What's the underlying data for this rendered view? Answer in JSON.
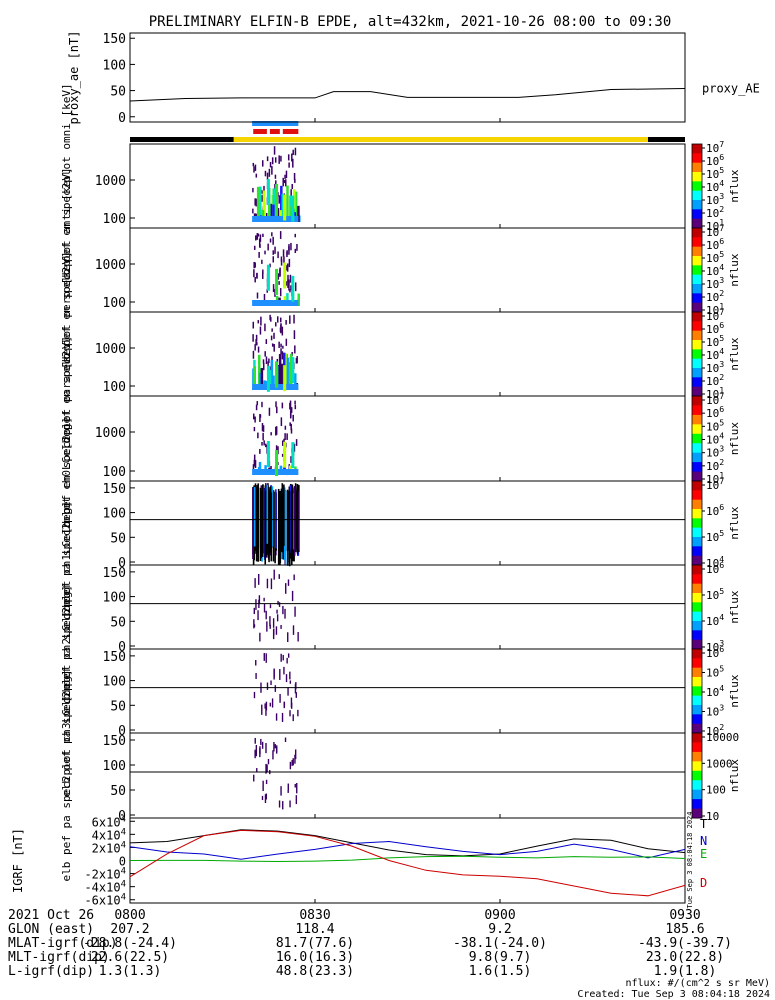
{
  "title": "PRELIMINARY ELFIN-B EPDE, alt=432km, 2021-10-26 08:00 to 09:30",
  "x_axis": {
    "date_label": "2021 Oct 26",
    "ticks": [
      "0800",
      "0830",
      "0900",
      "0930"
    ],
    "rows": [
      {
        "label": "GLON (east)",
        "values": [
          "207.2",
          "118.4",
          "9.2",
          "185.6"
        ]
      },
      {
        "label": "MLAT-igrf(dip)",
        "values": [
          "-28.8(-24.4)",
          "81.7(77.6)",
          "-38.1(-24.0)",
          "-43.9(-39.7)"
        ]
      },
      {
        "label": "MLT-igrf(dip)",
        "values": [
          "22.6(22.5)",
          "16.0(16.3)",
          "9.8(9.7)",
          "23.0(22.8)"
        ]
      },
      {
        "label": "L-igrf(dip)",
        "values": [
          "1.3(1.3)",
          "48.8(23.3)",
          "1.6(1.5)",
          "1.9(1.8)"
        ]
      }
    ]
  },
  "footer": {
    "units": "nflux: #/(cm^2 s sr MeV)",
    "created": "Created: Tue Sep  3 08:04:18 2024",
    "side_stamp": "Tue Sep  3 08:04:18 2024"
  },
  "chart_data": [
    {
      "type": "line",
      "ylabel": "proxy_ae [nT]",
      "yticks": [
        "0",
        "50",
        "100",
        "150"
      ],
      "ylim": [
        -10,
        160
      ],
      "series": [
        {
          "name": "proxy_AE",
          "color": "#000000",
          "x": [
            8.0,
            8.15,
            8.3,
            8.5,
            8.55,
            8.65,
            8.75,
            9.05,
            9.15,
            9.3,
            9.5
          ],
          "values": [
            30,
            35,
            36,
            36,
            48,
            48,
            37,
            37,
            42,
            52,
            54
          ]
        }
      ]
    },
    {
      "type": "spectrogram",
      "ylabel": "elb pef en spec2plot omni [keV]",
      "yticks": [
        "100",
        "1000"
      ],
      "colorbar": {
        "label": "nflux",
        "ticks": [
          "10^1",
          "10^2",
          "10^3",
          "10^4",
          "10^5",
          "10^6",
          "10^7"
        ]
      }
    },
    {
      "type": "spectrogram",
      "ylabel": "elb pef en spec2plot anti [keV]",
      "yticks": [
        "100",
        "1000"
      ],
      "colorbar": {
        "label": "nflux",
        "ticks": [
          "10^1",
          "10^2",
          "10^3",
          "10^4",
          "10^5",
          "10^6",
          "10^7"
        ]
      }
    },
    {
      "type": "spectrogram",
      "ylabel": "elb pef en spec2plot perp [keV]",
      "yticks": [
        "100",
        "1000"
      ],
      "colorbar": {
        "label": "nflux",
        "ticks": [
          "10^1",
          "10^2",
          "10^3",
          "10^4",
          "10^5",
          "10^6",
          "10^7"
        ]
      }
    },
    {
      "type": "spectrogram",
      "ylabel": "elb pef en spec2plot para [keV]",
      "yticks": [
        "100",
        "1000"
      ],
      "colorbar": {
        "label": "nflux",
        "ticks": [
          "10^1",
          "10^2",
          "10^3",
          "10^4",
          "10^5",
          "10^6",
          "10^7"
        ]
      }
    },
    {
      "type": "spectrogram",
      "ylabel": "elb pef pa spec2plot ch0LC [deg]",
      "yticks": [
        "0",
        "50",
        "100",
        "150"
      ],
      "colorbar": {
        "label": "nflux",
        "ticks": [
          "10^4",
          "10^5",
          "10^6",
          "10^7"
        ]
      }
    },
    {
      "type": "spectrogram",
      "ylabel": "elb pef pa spec2plot ch1LC [deg]",
      "yticks": [
        "0",
        "50",
        "100",
        "150"
      ],
      "colorbar": {
        "label": "nflux",
        "ticks": [
          "10^3",
          "10^4",
          "10^5",
          "10^6"
        ]
      }
    },
    {
      "type": "spectrogram",
      "ylabel": "elb pef pa spec2plot ch2LC [deg]",
      "yticks": [
        "0",
        "50",
        "100",
        "150"
      ],
      "colorbar": {
        "label": "nflux",
        "ticks": [
          "10^2",
          "10^3",
          "10^4",
          "10^5",
          "10^6"
        ]
      }
    },
    {
      "type": "spectrogram",
      "ylabel": "elb pef pa spec2plot ch3LC [deg]",
      "yticks": [
        "0",
        "50",
        "100",
        "150"
      ],
      "colorbar": {
        "label": "nflux",
        "ticks": [
          "10",
          "100",
          "1000",
          "10000"
        ]
      }
    },
    {
      "type": "line",
      "ylabel": "IGRF [nT]",
      "yticks": [
        "-6x10^4",
        "-4x10^4",
        "-2x10^4",
        "0",
        "2x10^4",
        "4x10^4",
        "6x10^4"
      ],
      "ylim": [
        -65000,
        65000
      ],
      "series": [
        {
          "name": "T",
          "color": "#000000",
          "x": [
            8.0,
            8.1,
            8.2,
            8.3,
            8.4,
            8.5,
            8.6,
            8.7,
            8.8,
            8.9,
            9.0,
            9.1,
            9.2,
            9.3,
            9.4,
            9.5
          ],
          "values": [
            27000,
            29000,
            38000,
            47000,
            45000,
            38000,
            27000,
            16000,
            9000,
            7000,
            10000,
            22000,
            33000,
            31000,
            18000,
            12000
          ]
        },
        {
          "name": "N",
          "color": "#0000cc",
          "x": [
            8.0,
            8.1,
            8.2,
            8.3,
            8.4,
            8.5,
            8.6,
            8.7,
            8.8,
            8.9,
            9.0,
            9.1,
            9.2,
            9.3,
            9.4,
            9.5
          ],
          "values": [
            21000,
            13000,
            10000,
            2000,
            10000,
            17000,
            26000,
            29000,
            21000,
            14000,
            9000,
            14000,
            25000,
            17000,
            4000,
            17000
          ]
        },
        {
          "name": "E",
          "color": "#00aa00",
          "x": [
            8.0,
            8.1,
            8.2,
            8.3,
            8.4,
            8.5,
            8.6,
            8.7,
            8.8,
            8.9,
            9.0,
            9.1,
            9.2,
            9.3,
            9.4,
            9.5
          ],
          "values": [
            0,
            200,
            100,
            -1000,
            -1500,
            -1000,
            500,
            4000,
            6000,
            6500,
            5000,
            4000,
            6000,
            5000,
            5500,
            3000
          ]
        },
        {
          "name": "D",
          "color": "#cc0000",
          "x": [
            8.0,
            8.1,
            8.2,
            8.3,
            8.4,
            8.5,
            8.6,
            8.7,
            8.8,
            8.9,
            9.0,
            9.1,
            9.2,
            9.3,
            9.4,
            9.5
          ],
          "values": [
            -25000,
            10000,
            38000,
            46000,
            44000,
            37000,
            22000,
            0,
            -15000,
            -22000,
            -24000,
            -28000,
            -39000,
            -50000,
            -54000,
            -38000
          ]
        }
      ]
    }
  ]
}
